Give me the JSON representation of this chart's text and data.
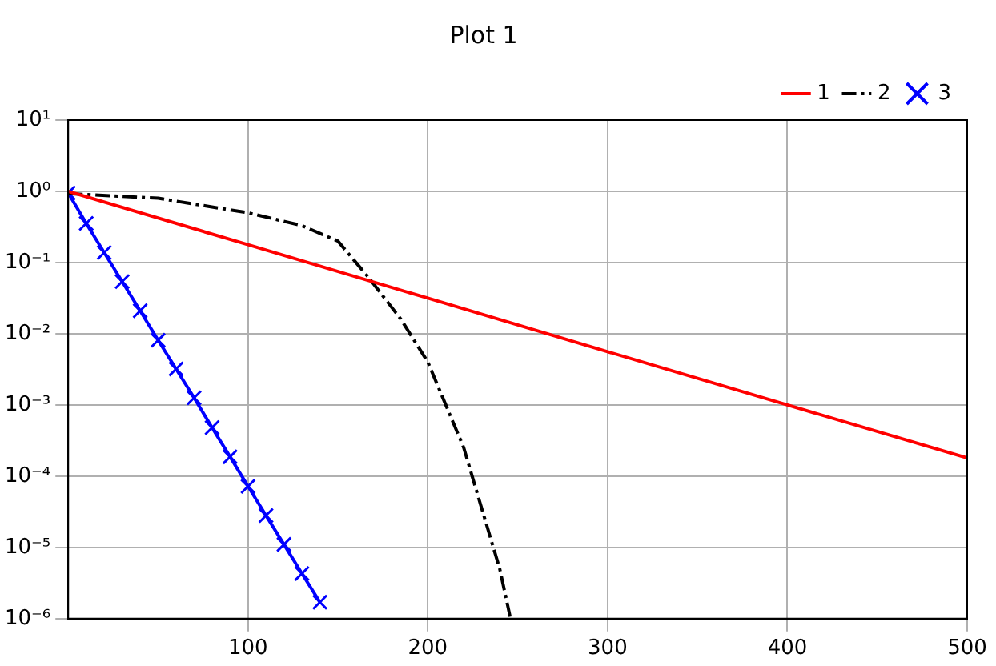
{
  "chart_data": {
    "type": "line",
    "title": "Plot 1",
    "xlim": [
      0,
      500
    ],
    "xticks": [
      100,
      200,
      300,
      400,
      500
    ],
    "ylim": [
      1e-06,
      10
    ],
    "log": "y",
    "yticks": [
      {
        "value": 1e-06,
        "label": "10⁻⁶"
      },
      {
        "value": 1e-05,
        "label": "10⁻⁵"
      },
      {
        "value": 0.0001,
        "label": "10⁻⁴"
      },
      {
        "value": 0.001,
        "label": "10⁻³"
      },
      {
        "value": 0.01,
        "label": "10⁻²"
      },
      {
        "value": 0.1,
        "label": "10⁻¹"
      },
      {
        "value": 1,
        "label": "10⁰"
      },
      {
        "value": 10,
        "label": "10¹"
      }
    ],
    "grid": true,
    "legend": "top right",
    "series": [
      {
        "name": "1",
        "color": "#ff0000",
        "line_style": "solid",
        "x": [
          0,
          100,
          200,
          300,
          400,
          500
        ],
        "values": [
          1,
          0.178,
          0.0316,
          0.0056,
          0.001,
          0.00018
        ]
      },
      {
        "name": "2",
        "color": "#000000",
        "line_style": "dashdot",
        "x": [
          0,
          50,
          100,
          130,
          150,
          167,
          185,
          200,
          220,
          230,
          240,
          246
        ],
        "values": [
          0.93,
          0.8,
          0.5,
          0.33,
          0.2,
          0.062,
          0.016,
          0.004,
          0.00025,
          3.5e-05,
          5e-06,
          1e-06
        ]
      },
      {
        "name": "3",
        "color": "#0000ff",
        "line_style": "solid",
        "marker": "cross",
        "x": [
          0,
          10,
          20,
          30,
          40,
          50,
          60,
          70,
          80,
          90,
          100,
          110,
          120,
          130,
          140
        ],
        "values": [
          0.95,
          0.355,
          0.138,
          0.054,
          0.021,
          0.0081,
          0.0032,
          0.00126,
          0.00048,
          0.000187,
          7.2e-05,
          2.8e-05,
          1.1e-05,
          4.3e-06,
          1.7e-06
        ]
      }
    ]
  }
}
